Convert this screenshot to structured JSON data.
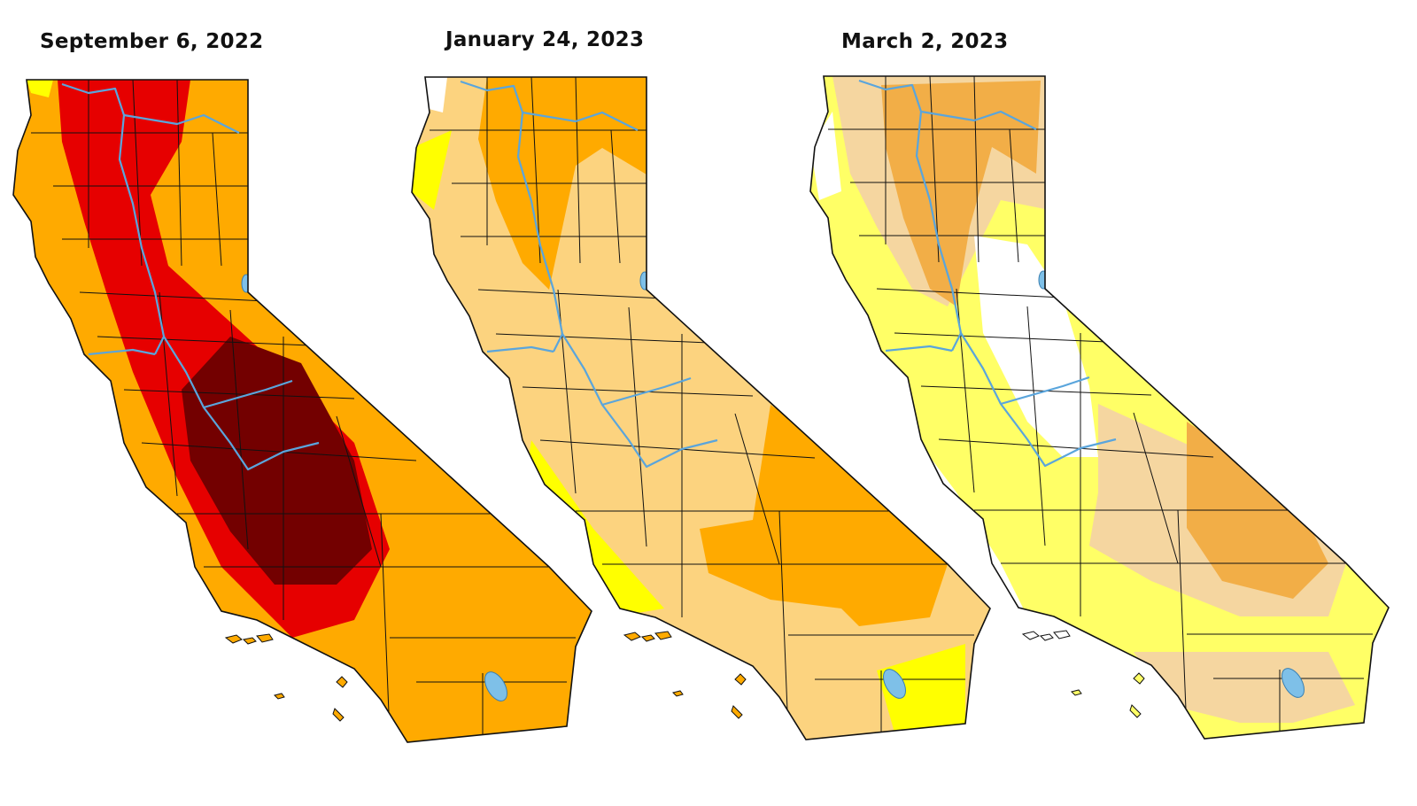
{
  "panels": [
    {
      "title": "September 6, 2022"
    },
    {
      "title": "January 24, 2023"
    },
    {
      "title": "March 2, 2023"
    }
  ],
  "colors": {
    "none": "#ffffff",
    "d0_abnormally_dry": "#ffff00",
    "d1_moderate": "#fcd37f",
    "d2_severe": "#ffaa00",
    "d3_extreme": "#e60000",
    "d4_exceptional": "#730000",
    "d0_faded": "#ffff66",
    "d1_faded": "#f5d6a0",
    "d2_faded": "#f2ae47",
    "rivers_lakes": "#5aa5dc",
    "borders": "#111111"
  },
  "icons": {
    "rivers": "river-lines",
    "lakes": "lake-shapes",
    "counties": "county-boundaries"
  }
}
